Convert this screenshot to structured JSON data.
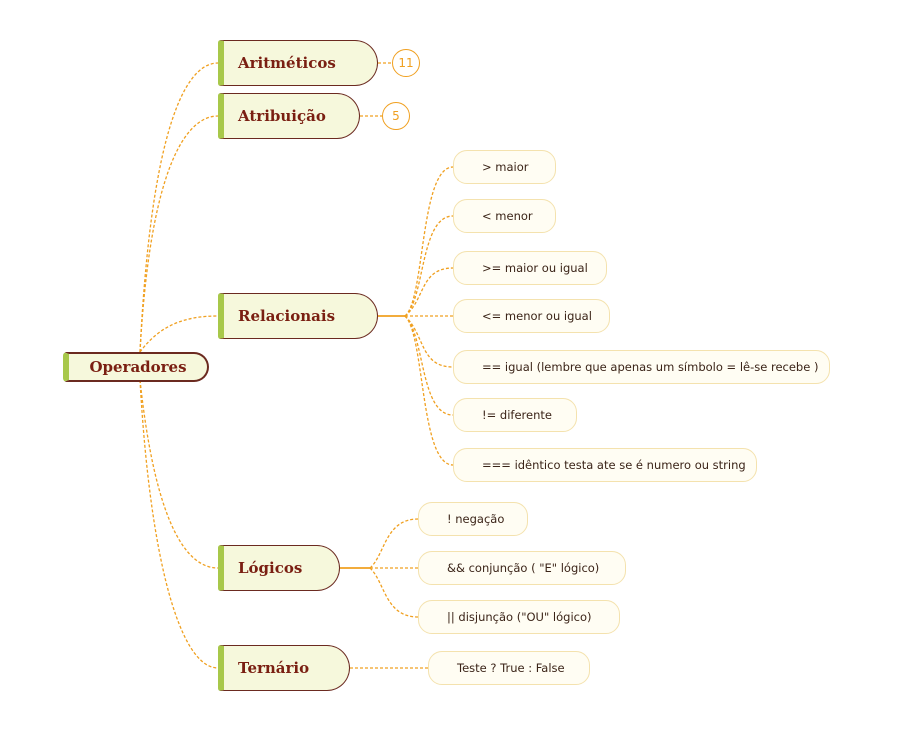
{
  "root": {
    "label": "Operadores"
  },
  "categories": [
    {
      "label": "Aritméticos",
      "count": "11"
    },
    {
      "label": "Atribuição",
      "count": "5"
    },
    {
      "label": "Relacionais"
    },
    {
      "label": "Lógicos"
    },
    {
      "label": "Ternário"
    }
  ],
  "relacionais": [
    "> maior",
    "< menor",
    ">= maior ou igual",
    "<= menor ou igual",
    "== igual (lembre que apenas um símbolo = lê-se  recebe )",
    "!= diferente",
    "=== idêntico  testa ate se é numero ou string"
  ],
  "logicos": [
    "! negação",
    "&& conjunção ( \"E\" lógico)",
    "|| disjunção (\"OU\" lógico)"
  ],
  "ternario": [
    "Teste ? True :  False"
  ],
  "colors": {
    "connector": "#f0a020",
    "node_border": "#6b2a20",
    "node_text": "#7a1f12",
    "accent_green": "#a8c84a",
    "node_fill": "#f6f8dc",
    "leaf_border": "#f4e2ae"
  }
}
